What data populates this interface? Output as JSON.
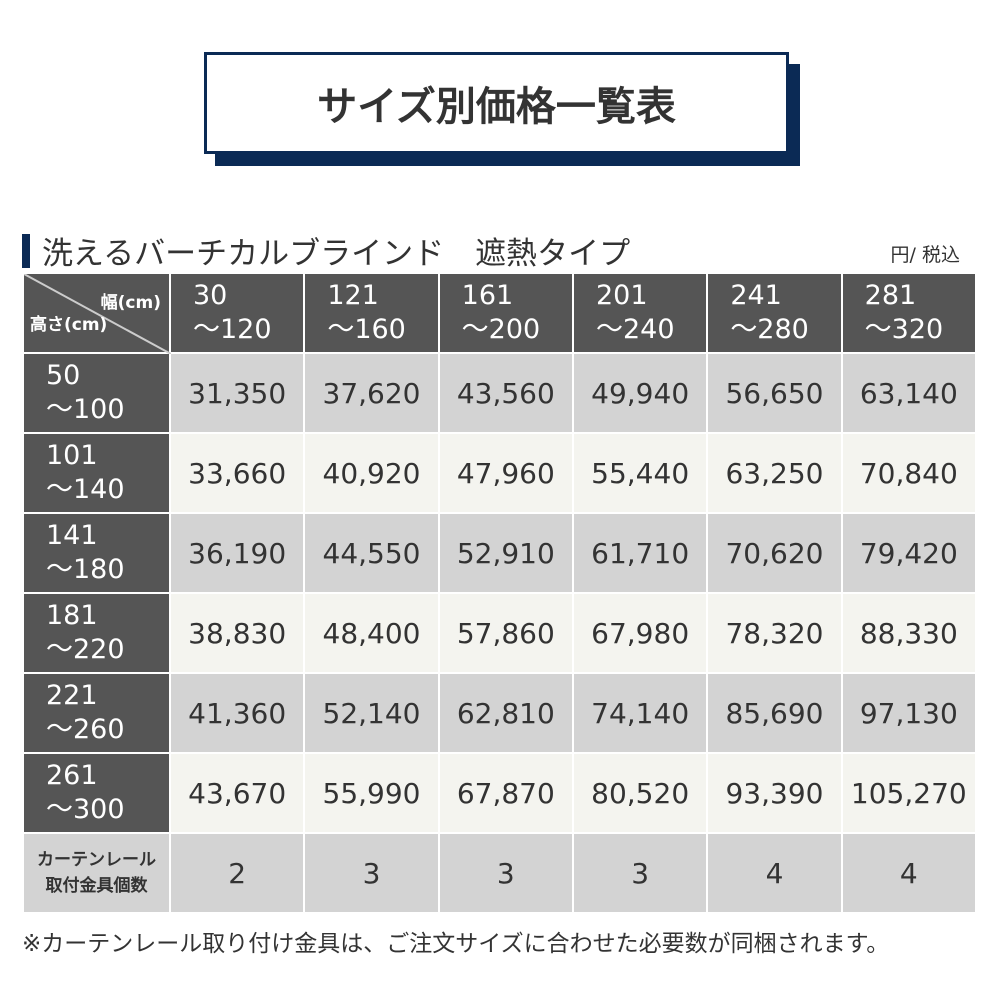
{
  "title": "サイズ別価格一覧表",
  "subtitle": "洗えるバーチカルブラインド　遮熱タイプ",
  "unit": "円/ 税込",
  "table": {
    "corner_width_label": "幅(cm)",
    "corner_height_label": "高さ(cm)",
    "width_headers": [
      [
        "30",
        "～120"
      ],
      [
        "121",
        "～160"
      ],
      [
        "161",
        "～200"
      ],
      [
        "201",
        "～240"
      ],
      [
        "241",
        "～280"
      ],
      [
        "281",
        "～320"
      ]
    ],
    "rows": [
      {
        "height": [
          "50",
          "～100"
        ],
        "prices": [
          "31,350",
          "37,620",
          "43,560",
          "49,940",
          "56,650",
          "63,140"
        ]
      },
      {
        "height": [
          "101",
          "～140"
        ],
        "prices": [
          "33,660",
          "40,920",
          "47,960",
          "55,440",
          "63,250",
          "70,840"
        ]
      },
      {
        "height": [
          "141",
          "～180"
        ],
        "prices": [
          "36,190",
          "44,550",
          "52,910",
          "61,710",
          "70,620",
          "79,420"
        ]
      },
      {
        "height": [
          "181",
          "～220"
        ],
        "prices": [
          "38,830",
          "48,400",
          "57,860",
          "67,980",
          "78,320",
          "88,330"
        ]
      },
      {
        "height": [
          "221",
          "～260"
        ],
        "prices": [
          "41,360",
          "52,140",
          "62,810",
          "74,140",
          "85,690",
          "97,130"
        ]
      },
      {
        "height": [
          "261",
          "～300"
        ],
        "prices": [
          "43,670",
          "55,990",
          "67,870",
          "80,520",
          "93,390",
          "105,270"
        ]
      }
    ],
    "rail_label": [
      "カーテンレール",
      "取付金具個数"
    ],
    "rail_counts": [
      "2",
      "3",
      "3",
      "3",
      "4",
      "4"
    ]
  },
  "note": "※カーテンレール取り付け金具は、ご注文サイズに合わせた必要数が同梱されます。",
  "colors": {
    "navy": "#0b2a55",
    "header": "#555555",
    "row_gray": "#d3d3d3",
    "row_light": "#f4f4ef"
  }
}
